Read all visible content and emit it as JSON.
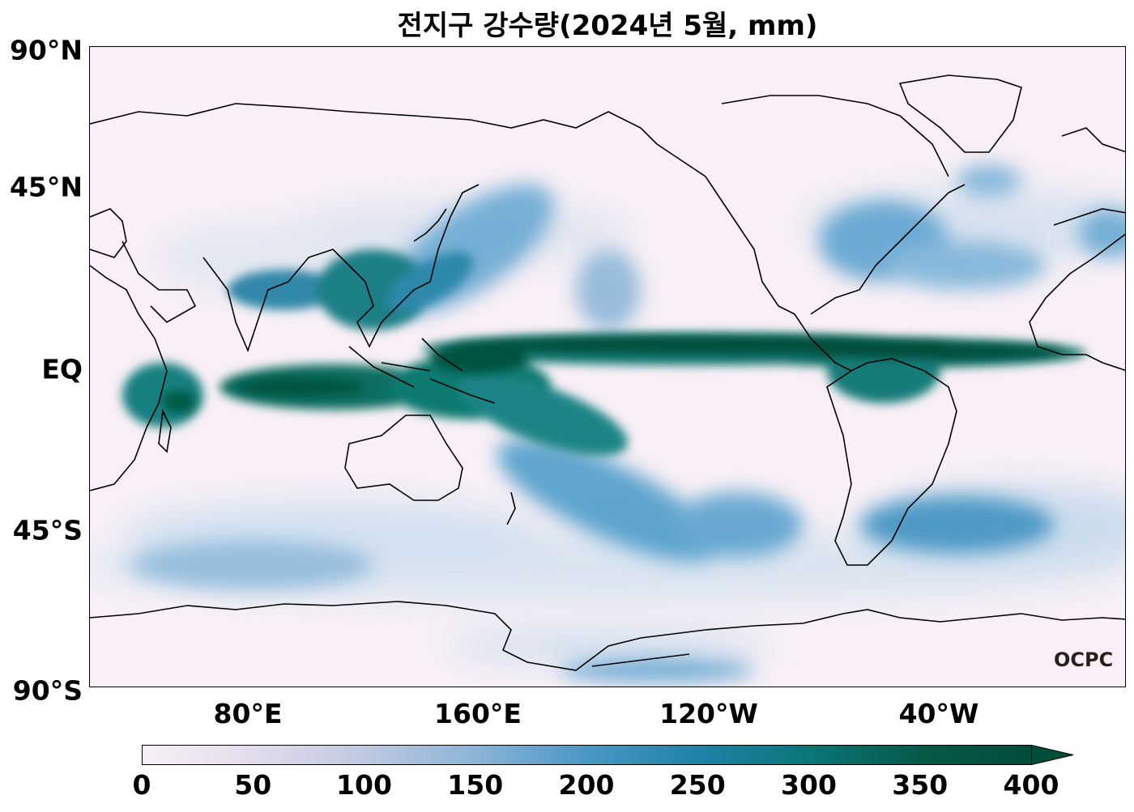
{
  "title": "전지구 강수량(2024년 5월, mm)",
  "lat_labels": [
    "90°N",
    "45°N",
    "EQ",
    "45°S",
    "90°S"
  ],
  "lon_labels": [
    "80°E",
    "160°E",
    "120°W",
    "40°W"
  ],
  "colorbar": {
    "ticks": [
      "0",
      "50",
      "100",
      "150",
      "200",
      "250",
      "300",
      "350",
      "400"
    ],
    "min": 0,
    "max": 400,
    "extend": "max",
    "colors": [
      "#f8f0f6",
      "#e2dcec",
      "#bfc9e1",
      "#8cb4d6",
      "#4a97c6",
      "#1f82a8",
      "#0a7678",
      "#075a48",
      "#004d3a"
    ]
  },
  "logo": "OCPC",
  "colors": {
    "dry": "#f8f0f6",
    "light": "#cfe0ee",
    "medium": "#6aaad3",
    "heavy": "#0d7a7c",
    "extreme": "#004d3a"
  }
}
